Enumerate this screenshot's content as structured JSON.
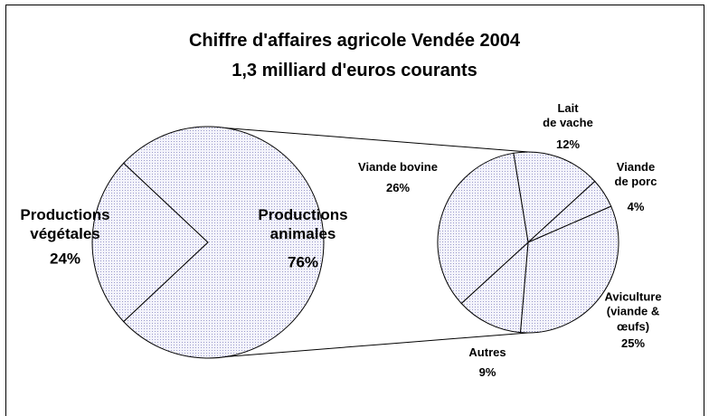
{
  "chart_data": [
    {
      "type": "pie",
      "title": "Chiffre d'affaires agricole Vendée 2004",
      "subtitle": "1,3 milliard d'euros courants",
      "categories": [
        "Productions\nvégétales",
        "Productions\nanimales"
      ],
      "values": [
        24,
        76
      ],
      "value_labels": [
        "24%",
        "76%"
      ],
      "color": "#9a9acc"
    },
    {
      "type": "pie",
      "categories": [
        "Lait\nde vache",
        "Viande\nde porc",
        "Aviculture\n(viande & œufs)",
        "Autres",
        "Viande bovine"
      ],
      "values": [
        12,
        4,
        25,
        9,
        26
      ],
      "value_labels": [
        "12%",
        "4%",
        "25%",
        "9%",
        "26%"
      ],
      "color": "#9a9acc"
    }
  ]
}
